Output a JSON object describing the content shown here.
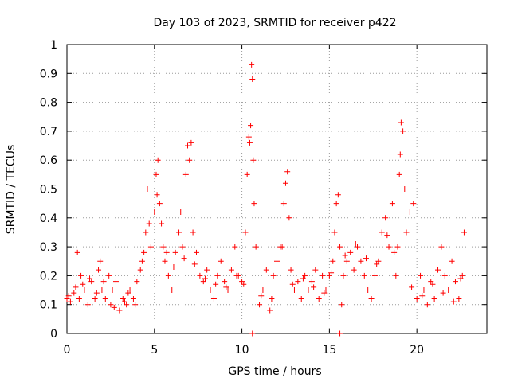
{
  "chart_data": {
    "type": "scatter",
    "title": "Day 103 of 2023, SRMTID for receiver p422",
    "xlabel": "GPS time / hours",
    "ylabel": "SRMTID / TECUs",
    "xlim": [
      0,
      24
    ],
    "ylim": [
      0,
      1
    ],
    "xticks": [
      0,
      5,
      10,
      15,
      20
    ],
    "xtick_labels": [
      "0",
      "5",
      "10",
      "15",
      "20"
    ],
    "yticks": [
      0,
      0.1,
      0.2,
      0.3,
      0.4,
      0.5,
      0.6,
      0.7,
      0.8,
      0.9,
      1
    ],
    "ytick_labels": [
      "0",
      "0.1",
      "0.2",
      "0.3",
      "0.4",
      "0.5",
      "0.6",
      "0.7",
      "0.8",
      "0.9",
      "1"
    ],
    "grid": true,
    "marker": "+",
    "color": "#ff0000",
    "series": [
      {
        "name": "SRMTID",
        "x": [
          0.0,
          0.2,
          0.4,
          0.6,
          0.7,
          0.8,
          1.0,
          1.2,
          1.4,
          1.6,
          1.8,
          1.9,
          2.0,
          2.2,
          2.4,
          2.5,
          2.6,
          2.8,
          3.0,
          3.2,
          3.4,
          3.5,
          3.6,
          3.8,
          4.0,
          4.2,
          4.4,
          4.5,
          4.6,
          4.8,
          5.0,
          5.1,
          5.2,
          5.3,
          5.4,
          5.5,
          5.6,
          5.8,
          6.0,
          6.2,
          6.4,
          6.5,
          6.6,
          6.8,
          6.9,
          7.0,
          7.1,
          7.2,
          7.4,
          7.6,
          7.8,
          8.0,
          8.2,
          8.4,
          8.6,
          8.8,
          9.0,
          9.2,
          9.4,
          9.6,
          9.8,
          10.0,
          10.2,
          10.3,
          10.4,
          10.5,
          10.55,
          10.6,
          10.65,
          10.7,
          10.8,
          11.0,
          11.2,
          11.4,
          11.6,
          11.8,
          12.0,
          12.2,
          12.4,
          12.5,
          12.6,
          12.7,
          12.8,
          13.0,
          13.2,
          13.4,
          13.6,
          13.8,
          14.0,
          14.2,
          14.4,
          14.6,
          14.8,
          15.0,
          15.2,
          15.3,
          15.4,
          15.5,
          15.6,
          15.7,
          15.8,
          16.0,
          16.2,
          16.4,
          16.6,
          16.8,
          17.0,
          17.2,
          17.4,
          17.6,
          17.8,
          18.0,
          18.2,
          18.4,
          18.6,
          18.8,
          18.9,
          19.0,
          19.1,
          19.2,
          19.3,
          19.4,
          19.6,
          19.8,
          20.0,
          20.2,
          20.4,
          20.6,
          20.8,
          21.0,
          21.2,
          21.4,
          21.6,
          21.8,
          22.0,
          22.2,
          22.4,
          22.6,
          22.7,
          0.1,
          0.5,
          0.9,
          1.3,
          1.7,
          2.1,
          2.7,
          3.3,
          3.9,
          4.3,
          4.7,
          5.15,
          5.7,
          6.1,
          6.7,
          7.3,
          7.9,
          8.5,
          9.1,
          9.7,
          10.1,
          10.45,
          11.1,
          11.7,
          12.3,
          12.9,
          13.5,
          14.1,
          14.7,
          15.1,
          15.9,
          16.5,
          17.1,
          17.7,
          18.3,
          18.7,
          19.05,
          19.7,
          20.3,
          20.9,
          21.5,
          22.1,
          22.5,
          10.6,
          15.6
        ],
        "y": [
          0.12,
          0.11,
          0.14,
          0.28,
          0.12,
          0.2,
          0.15,
          0.1,
          0.18,
          0.12,
          0.22,
          0.25,
          0.15,
          0.12,
          0.2,
          0.1,
          0.15,
          0.18,
          0.08,
          0.12,
          0.1,
          0.14,
          0.15,
          0.12,
          0.18,
          0.22,
          0.28,
          0.35,
          0.5,
          0.3,
          0.42,
          0.55,
          0.6,
          0.45,
          0.38,
          0.3,
          0.25,
          0.2,
          0.15,
          0.28,
          0.35,
          0.42,
          0.3,
          0.55,
          0.65,
          0.6,
          0.66,
          0.35,
          0.28,
          0.2,
          0.18,
          0.22,
          0.15,
          0.12,
          0.2,
          0.25,
          0.18,
          0.15,
          0.22,
          0.3,
          0.2,
          0.18,
          0.35,
          0.55,
          0.68,
          0.72,
          0.93,
          0.88,
          0.6,
          0.45,
          0.3,
          0.1,
          0.15,
          0.22,
          0.08,
          0.2,
          0.25,
          0.3,
          0.45,
          0.52,
          0.56,
          0.4,
          0.22,
          0.15,
          0.18,
          0.12,
          0.2,
          0.15,
          0.18,
          0.22,
          0.12,
          0.2,
          0.15,
          0.2,
          0.25,
          0.35,
          0.45,
          0.48,
          0.3,
          0.1,
          0.2,
          0.25,
          0.28,
          0.22,
          0.3,
          0.25,
          0.2,
          0.15,
          0.12,
          0.2,
          0.25,
          0.35,
          0.4,
          0.3,
          0.45,
          0.2,
          0.3,
          0.55,
          0.73,
          0.7,
          0.5,
          0.35,
          0.42,
          0.45,
          0.12,
          0.2,
          0.15,
          0.1,
          0.18,
          0.12,
          0.22,
          0.3,
          0.2,
          0.15,
          0.25,
          0.18,
          0.12,
          0.2,
          0.35,
          0.13,
          0.16,
          0.17,
          0.19,
          0.14,
          0.18,
          0.09,
          0.11,
          0.1,
          0.25,
          0.38,
          0.48,
          0.28,
          0.23,
          0.26,
          0.24,
          0.19,
          0.17,
          0.16,
          0.2,
          0.17,
          0.66,
          0.13,
          0.12,
          0.3,
          0.17,
          0.19,
          0.16,
          0.14,
          0.21,
          0.27,
          0.31,
          0.26,
          0.24,
          0.34,
          0.28,
          0.62,
          0.16,
          0.13,
          0.17,
          0.14,
          0.11,
          0.19,
          0.0,
          0.0
        ]
      }
    ]
  }
}
